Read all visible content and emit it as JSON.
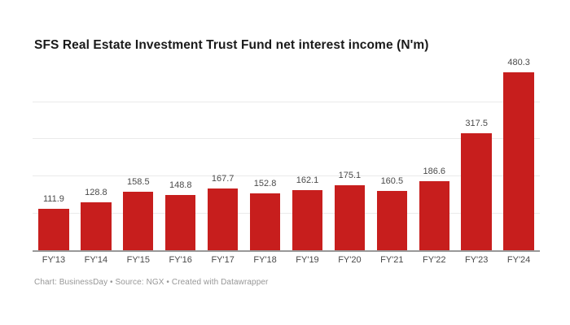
{
  "title": "SFS Real Estate Investment Trust Fund net interest income (N'm)",
  "footer": {
    "text": "Chart: BusinessDay • Source: NGX • Created with Datawrapper"
  },
  "colors": {
    "background": "#ffffff",
    "bar": "#c71e1d",
    "title_text": "#1a1a1a",
    "value_label": "#4a4a4a",
    "tick_label": "#494949",
    "axis_line": "#999999",
    "gridline": "#eaeaea",
    "footer_text": "#979797"
  },
  "chart_data": {
    "type": "bar",
    "title": "SFS Real Estate Investment Trust Fund net interest income (N'm)",
    "categories": [
      "FY'13",
      "FY'14",
      "FY'15",
      "FY'16",
      "FY'17",
      "FY'18",
      "FY'19",
      "FY'20",
      "FY'21",
      "FY'22",
      "FY'23",
      "FY'24"
    ],
    "values": [
      111.9,
      128.8,
      158.5,
      148.8,
      167.7,
      152.8,
      162.1,
      175.1,
      160.5,
      186.6,
      317.5,
      480.3
    ],
    "xlabel": "",
    "ylabel": "",
    "ylim": [
      0,
      523
    ],
    "gridline_values": [
      100,
      200,
      300,
      400
    ],
    "grid": "horizontal-only",
    "legend": "none",
    "value_labels_shown": true,
    "y_axis_labels_shown": false
  }
}
